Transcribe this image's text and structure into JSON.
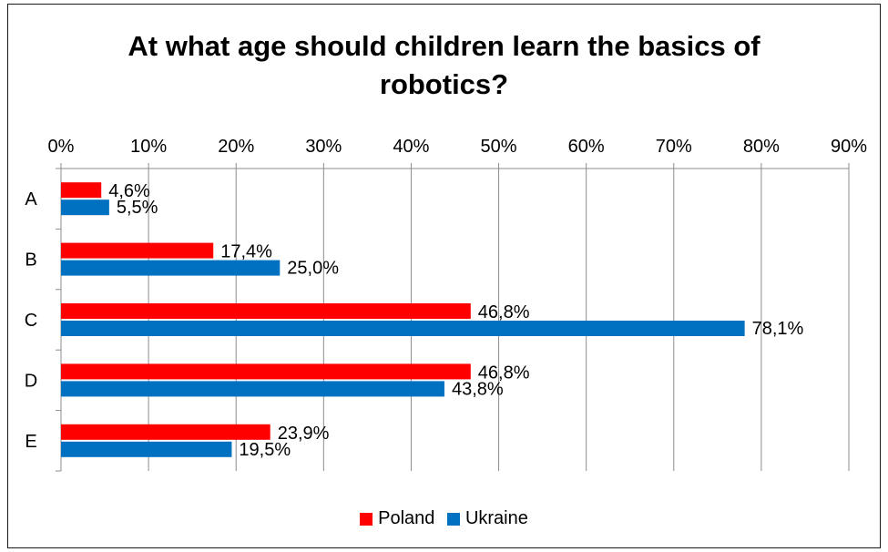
{
  "chart_data": {
    "type": "bar",
    "orientation": "horizontal",
    "title": "At what age should children learn the basics of robotics?",
    "title_lines": [
      "At what age should children learn the basics of",
      "robotics?"
    ],
    "categories": [
      "A",
      "B",
      "C",
      "D",
      "E"
    ],
    "series": [
      {
        "name": "Poland",
        "color": "#ff0000",
        "values": [
          4.6,
          17.4,
          46.8,
          46.8,
          23.9
        ],
        "labels": [
          "4,6%",
          "17,4%",
          "46,8%",
          "46,8%",
          "23,9%"
        ]
      },
      {
        "name": "Ukraine",
        "color": "#0070c0",
        "values": [
          5.5,
          25.0,
          78.1,
          43.8,
          19.5
        ],
        "labels": [
          "5,5%",
          "25,0%",
          "78,1%",
          "43,8%",
          "19,5%"
        ]
      }
    ],
    "xlim": [
      0,
      90
    ],
    "x_ticks": [
      "0%",
      "10%",
      "20%",
      "30%",
      "40%",
      "50%",
      "60%",
      "70%",
      "80%",
      "90%"
    ],
    "x_axis_position": "top",
    "grid": true,
    "legend_position": "bottom"
  }
}
